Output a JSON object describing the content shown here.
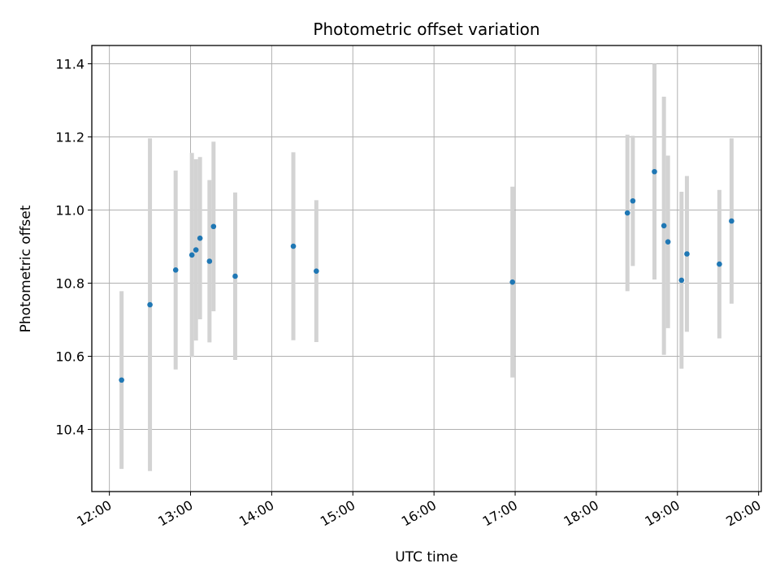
{
  "chart_data": {
    "type": "scatter",
    "title": "Photometric offset variation",
    "xlabel": "UTC time",
    "ylabel": "Photometric offset",
    "x_ticks": [
      "12:00",
      "13:00",
      "14:00",
      "15:00",
      "16:00",
      "17:00",
      "18:00",
      "19:00",
      "20:00"
    ],
    "y_ticks": [
      "10.4",
      "10.6",
      "10.8",
      "11.0",
      "11.2",
      "11.4"
    ],
    "x_range": [
      "11:47",
      "20:02"
    ],
    "ylim": [
      10.23,
      11.45
    ],
    "grid": true,
    "colors": {
      "marker": "#1f77b4",
      "errorbar": "#d3d3d3",
      "grid": "#b0b0b0"
    },
    "series": [
      {
        "points": [
          {
            "x": "12:09",
            "y": 10.535,
            "yerr": 0.243
          },
          {
            "x": "12:30",
            "y": 10.741,
            "yerr": 0.455
          },
          {
            "x": "12:49",
            "y": 10.836,
            "yerr": 0.272
          },
          {
            "x": "13:01",
            "y": 10.877,
            "yerr": 0.279
          },
          {
            "x": "13:04",
            "y": 10.891,
            "yerr": 0.248
          },
          {
            "x": "13:07",
            "y": 10.923,
            "yerr": 0.222
          },
          {
            "x": "13:14",
            "y": 10.86,
            "yerr": 0.222
          },
          {
            "x": "13:17",
            "y": 10.955,
            "yerr": 0.232
          },
          {
            "x": "13:33",
            "y": 10.819,
            "yerr": 0.229
          },
          {
            "x": "14:16",
            "y": 10.901,
            "yerr": 0.257
          },
          {
            "x": "14:33",
            "y": 10.833,
            "yerr": 0.194
          },
          {
            "x": "16:58",
            "y": 10.803,
            "yerr": 0.261
          },
          {
            "x": "18:23",
            "y": 10.992,
            "yerr": 0.214
          },
          {
            "x": "18:27",
            "y": 11.025,
            "yerr": 0.178
          },
          {
            "x": "18:43",
            "y": 11.105,
            "yerr": 0.295
          },
          {
            "x": "18:50",
            "y": 10.957,
            "yerr": 0.353
          },
          {
            "x": "18:53",
            "y": 10.913,
            "yerr": 0.236
          },
          {
            "x": "19:03",
            "y": 10.808,
            "yerr": 0.242
          },
          {
            "x": "19:07",
            "y": 10.88,
            "yerr": 0.213
          },
          {
            "x": "19:31",
            "y": 10.852,
            "yerr": 0.203
          },
          {
            "x": "19:40",
            "y": 10.97,
            "yerr": 0.226
          }
        ]
      }
    ]
  }
}
